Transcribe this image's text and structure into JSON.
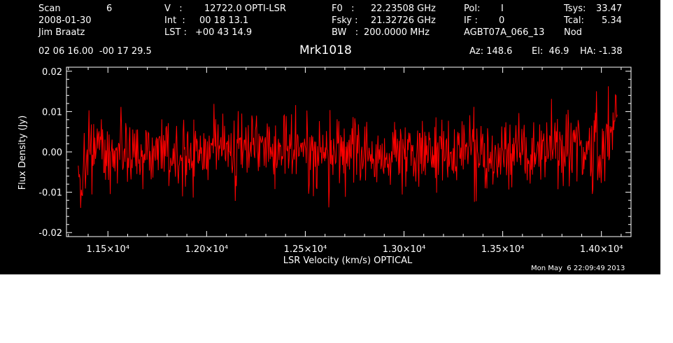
{
  "header": {
    "scan_label": "Scan",
    "scan_value": "6",
    "date": "2008-01-30",
    "observer": "Jim Braatz",
    "v_label": "V   :",
    "v_value": "12722.0 OPTI-LSR",
    "int_label": "Int  :",
    "int_value": "00 18 13.1",
    "lst_label": "LST :",
    "lst_value": "+00 43 14.9",
    "f0_label": "F0   :",
    "f0_value": "22.23508 GHz",
    "fsky_label": "Fsky :",
    "fsky_value": "21.32726 GHz",
    "bw_label": "BW   :",
    "bw_value": "200.0000 MHz",
    "pol_label": "Pol:",
    "pol_value": "I",
    "if_label": "IF :",
    "if_value": "0",
    "project": "AGBT07A_066_13",
    "tsys_label": "Tsys:",
    "tsys_value": "33.47",
    "tcal_label": "Tcal:",
    "tcal_value": "5.34",
    "mode": "Nod",
    "coords": "02 06 16.00  -00 17 29.5",
    "source": "Mrk1018",
    "az": "Az: 148.6",
    "el": "El:  46.9",
    "ha": "HA: -1.38"
  },
  "footer": {
    "timestamp": "Mon May  6 22:09:49 2013"
  },
  "chart_data": {
    "type": "line",
    "xlabel": "LSR Velocity (km/s) OPTICAL",
    "ylabel": "Flux Density (Jy)",
    "xlim": [
      11290,
      14150
    ],
    "ylim": [
      -0.021,
      0.021
    ],
    "x_ticks": [
      11500,
      12000,
      12500,
      13000,
      13500,
      14000
    ],
    "x_tick_labels": [
      "1.15×10⁴",
      "1.20×10⁴",
      "1.25×10⁴",
      "1.30×10⁴",
      "1.35×10⁴",
      "1.40×10⁴"
    ],
    "y_ticks": [
      -0.02,
      -0.01,
      0.0,
      0.01,
      0.02
    ],
    "y_tick_labels": [
      "-0.02",
      "-0.01",
      "0.00",
      "0.01",
      "0.02"
    ],
    "series": [
      {
        "color": "#ff0000",
        "x": [
          11350,
          11360,
          11370,
          11385,
          11400,
          11450,
          11500,
          11550,
          11600,
          11650,
          11700,
          11750,
          11800,
          11850,
          11900,
          11950,
          12000,
          12050,
          12100,
          12150,
          12200,
          12250,
          12300,
          12350,
          12400,
          12450,
          12500,
          12550,
          12600,
          12650,
          12700,
          12750,
          12800,
          12850,
          12900,
          12950,
          13000,
          13050,
          13100,
          13150,
          13200,
          13250,
          13300,
          13350,
          13400,
          13450,
          13500,
          13550,
          13600,
          13650,
          13700,
          13750,
          13800,
          13850,
          13900,
          13950,
          14000,
          14030,
          14050,
          14060,
          14070,
          14080
        ],
        "y": [
          -0.015,
          -0.008,
          -0.012,
          -0.004,
          -0.002,
          0.002,
          -0.001,
          0.001,
          0.0,
          0.002,
          -0.001,
          0.001,
          0.002,
          -0.002,
          0.0,
          0.001,
          -0.001,
          0.002,
          0.0,
          -0.001,
          0.001,
          0.002,
          0.0,
          -0.002,
          0.001,
          0.0,
          0.002,
          -0.001,
          0.0,
          0.001,
          -0.001,
          0.001,
          0.002,
          0.0,
          -0.001,
          0.001,
          0.0,
          0.002,
          -0.001,
          0.0,
          0.001,
          -0.001,
          0.002,
          0.0,
          0.001,
          -0.001,
          0.0,
          0.001,
          0.002,
          -0.001,
          0.0,
          0.001,
          -0.001,
          0.002,
          0.0,
          0.001,
          0.002,
          0.003,
          0.006,
          0.009,
          0.012,
          0.016
        ]
      }
    ],
    "noise_rms_jy": 0.0045,
    "x_step_kms": 3,
    "grid": false
  }
}
